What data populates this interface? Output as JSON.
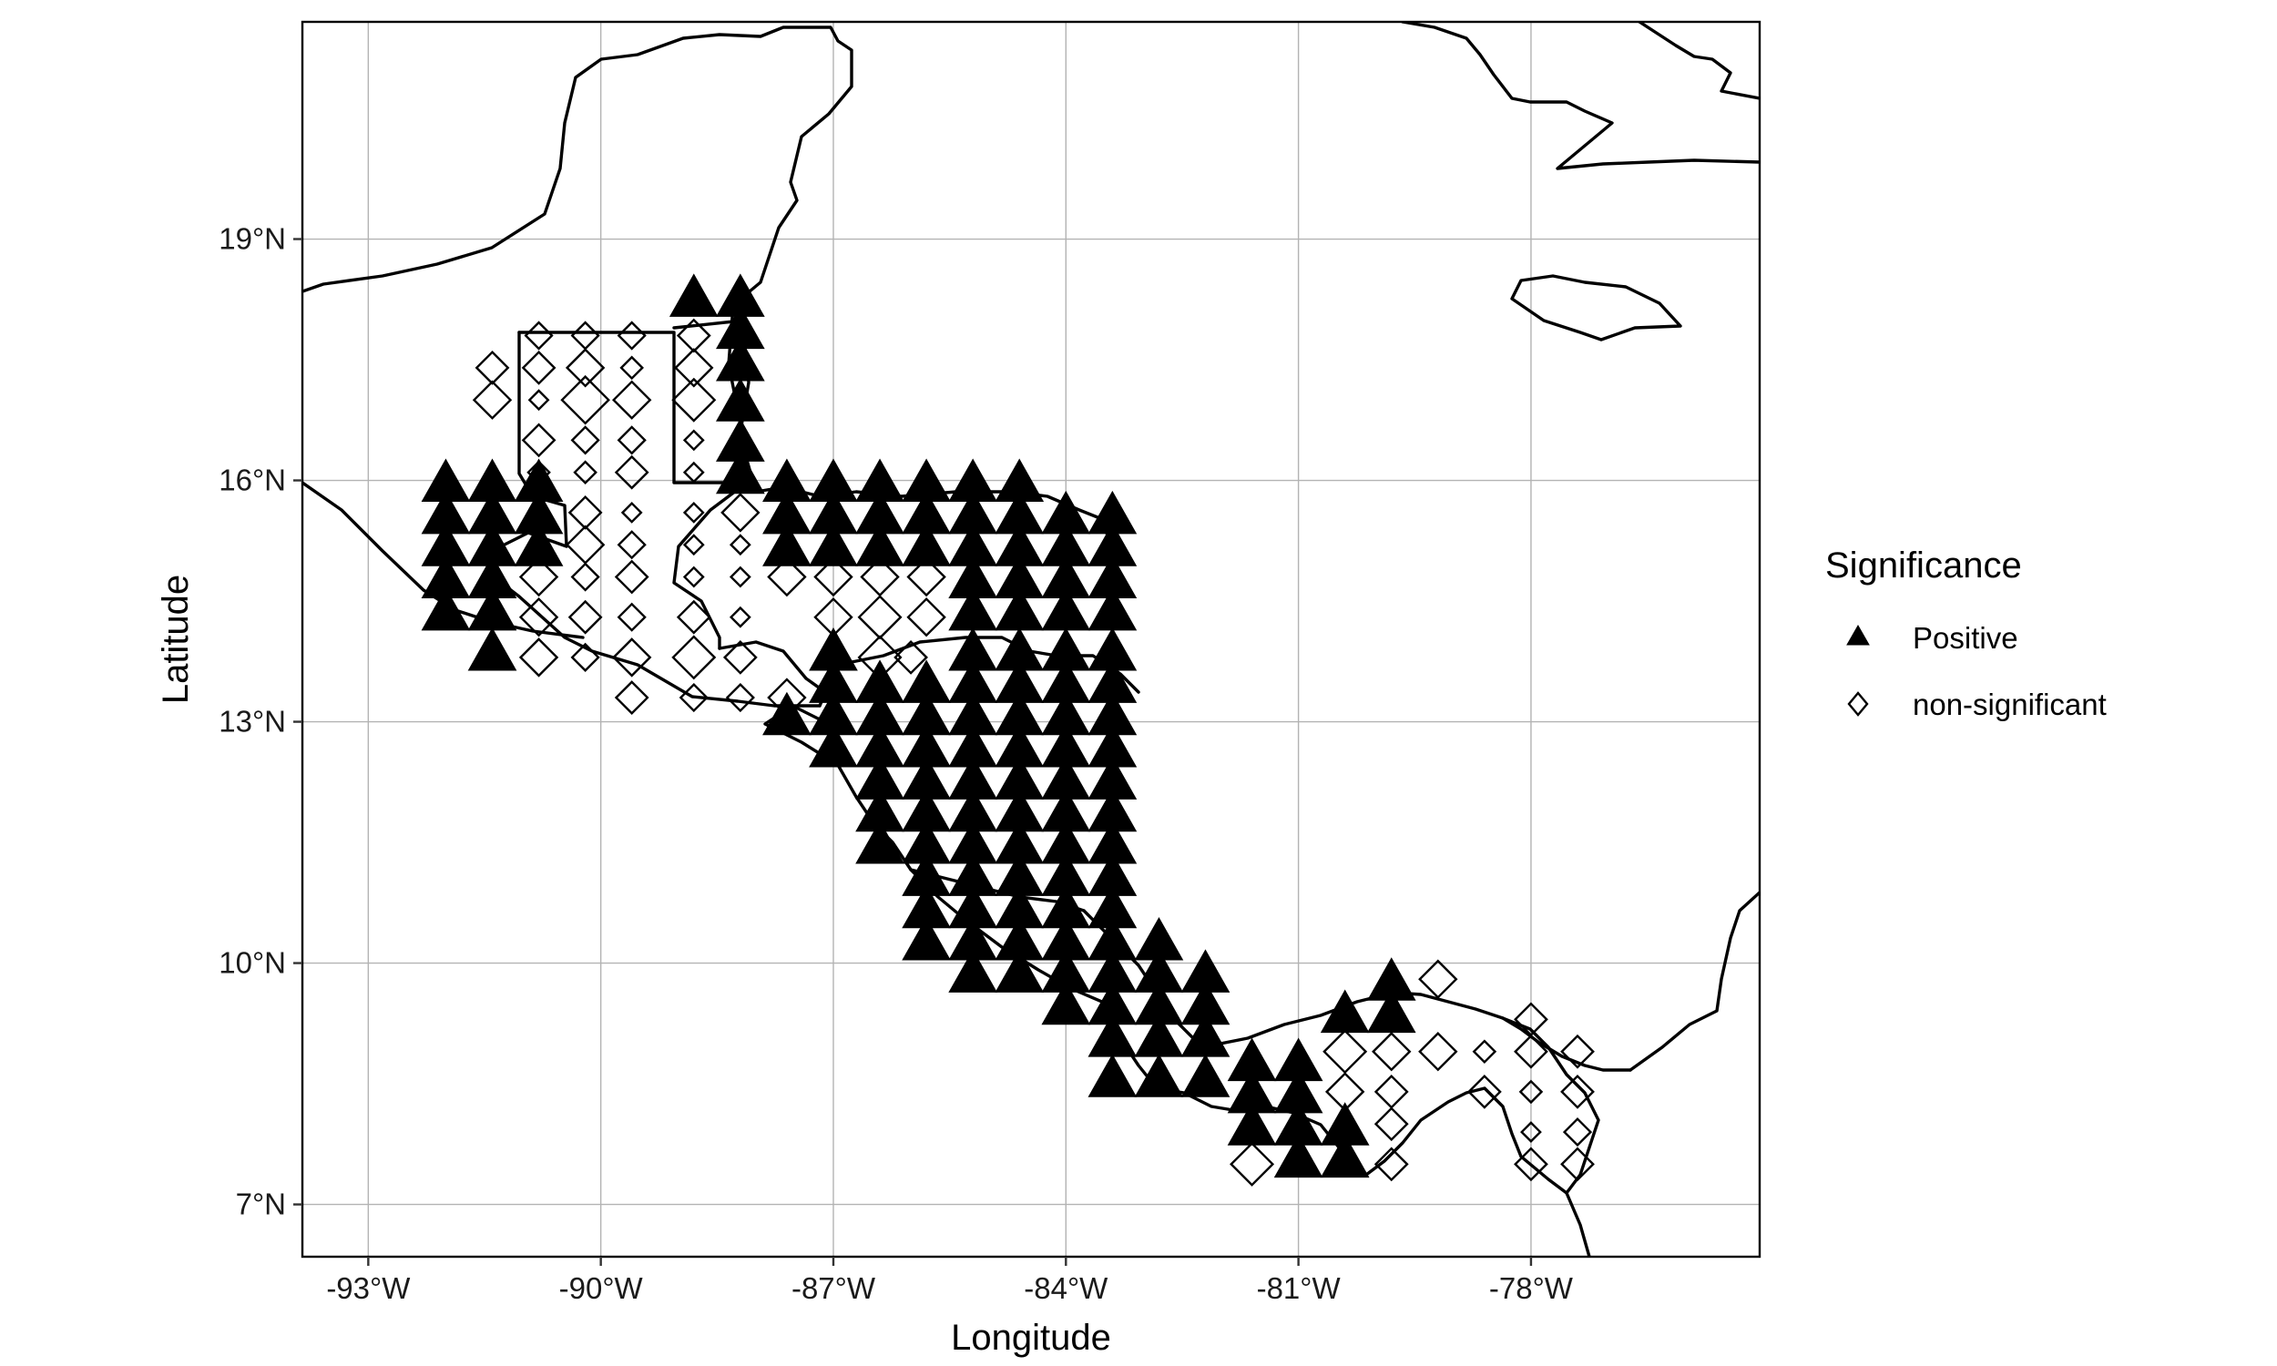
{
  "chart_data": {
    "type": "scatter",
    "xlabel": "Longitude",
    "ylabel": "Latitude",
    "xlim": [
      -93.85,
      -75.05
    ],
    "ylim": [
      6.35,
      21.7
    ],
    "x_ticks": [
      -93,
      -90,
      -87,
      -84,
      -81,
      -78
    ],
    "x_tick_labels": [
      "-93°W",
      "-90°W",
      "-87°W",
      "-84°W",
      "-81°W",
      "-78°W"
    ],
    "y_ticks": [
      7,
      10,
      13,
      16,
      19
    ],
    "y_tick_labels": [
      "7°N",
      "10°N",
      "13°N",
      "16°N",
      "19°N"
    ],
    "grid": true,
    "legend": {
      "title": "Significance",
      "position": "right",
      "entries": [
        {
          "label": "Positive",
          "marker": "triangle",
          "filled": true
        },
        {
          "label": "non-significant",
          "marker": "diamond",
          "filled": false
        }
      ]
    },
    "series": [
      {
        "name": "Positive",
        "marker": "triangle",
        "points": [
          [
            -88.8,
            18.3
          ],
          [
            -88.2,
            18.3
          ],
          [
            -88.2,
            17.9
          ],
          [
            -88.2,
            17.5
          ],
          [
            -88.2,
            17.0
          ],
          [
            -88.2,
            16.5
          ],
          [
            -88.2,
            16.1
          ],
          [
            -92.0,
            16.0
          ],
          [
            -91.4,
            16.0
          ],
          [
            -90.8,
            16.0
          ],
          [
            -92.0,
            15.6
          ],
          [
            -91.4,
            15.6
          ],
          [
            -90.8,
            15.6
          ],
          [
            -92.0,
            15.2
          ],
          [
            -91.4,
            15.2
          ],
          [
            -90.8,
            15.2
          ],
          [
            -92.0,
            14.8
          ],
          [
            -91.4,
            14.8
          ],
          [
            -92.0,
            14.4
          ],
          [
            -91.4,
            14.4
          ],
          [
            -91.4,
            13.9
          ],
          [
            -87.6,
            16.0
          ],
          [
            -87.0,
            16.0
          ],
          [
            -86.4,
            16.0
          ],
          [
            -85.8,
            16.0
          ],
          [
            -85.2,
            16.0
          ],
          [
            -84.6,
            16.0
          ],
          [
            -87.6,
            15.6
          ],
          [
            -87.0,
            15.6
          ],
          [
            -86.4,
            15.6
          ],
          [
            -85.8,
            15.6
          ],
          [
            -85.2,
            15.6
          ],
          [
            -84.6,
            15.6
          ],
          [
            -84.0,
            15.6
          ],
          [
            -83.4,
            15.6
          ],
          [
            -87.6,
            15.2
          ],
          [
            -87.0,
            15.2
          ],
          [
            -86.4,
            15.2
          ],
          [
            -85.8,
            15.2
          ],
          [
            -85.2,
            15.2
          ],
          [
            -84.6,
            15.2
          ],
          [
            -84.0,
            15.2
          ],
          [
            -83.4,
            15.2
          ],
          [
            -85.2,
            14.8
          ],
          [
            -84.6,
            14.8
          ],
          [
            -84.0,
            14.8
          ],
          [
            -83.4,
            14.8
          ],
          [
            -85.2,
            14.4
          ],
          [
            -84.6,
            14.4
          ],
          [
            -84.0,
            14.4
          ],
          [
            -83.4,
            14.4
          ],
          [
            -87.0,
            13.9
          ],
          [
            -85.2,
            13.9
          ],
          [
            -84.6,
            13.9
          ],
          [
            -84.0,
            13.9
          ],
          [
            -83.4,
            13.9
          ],
          [
            -87.0,
            13.5
          ],
          [
            -86.4,
            13.5
          ],
          [
            -85.8,
            13.5
          ],
          [
            -85.2,
            13.5
          ],
          [
            -84.6,
            13.5
          ],
          [
            -84.0,
            13.5
          ],
          [
            -83.4,
            13.5
          ],
          [
            -87.6,
            13.1
          ],
          [
            -87.0,
            13.1
          ],
          [
            -86.4,
            13.1
          ],
          [
            -85.8,
            13.1
          ],
          [
            -85.2,
            13.1
          ],
          [
            -84.6,
            13.1
          ],
          [
            -84.0,
            13.1
          ],
          [
            -83.4,
            13.1
          ],
          [
            -87.0,
            12.7
          ],
          [
            -86.4,
            12.7
          ],
          [
            -85.8,
            12.7
          ],
          [
            -85.2,
            12.7
          ],
          [
            -84.6,
            12.7
          ],
          [
            -84.0,
            12.7
          ],
          [
            -83.4,
            12.7
          ],
          [
            -86.4,
            12.3
          ],
          [
            -85.8,
            12.3
          ],
          [
            -85.2,
            12.3
          ],
          [
            -84.6,
            12.3
          ],
          [
            -84.0,
            12.3
          ],
          [
            -83.4,
            12.3
          ],
          [
            -86.4,
            11.9
          ],
          [
            -85.8,
            11.9
          ],
          [
            -85.2,
            11.9
          ],
          [
            -84.6,
            11.9
          ],
          [
            -84.0,
            11.9
          ],
          [
            -83.4,
            11.9
          ],
          [
            -86.4,
            11.5
          ],
          [
            -85.8,
            11.5
          ],
          [
            -85.2,
            11.5
          ],
          [
            -84.6,
            11.5
          ],
          [
            -84.0,
            11.5
          ],
          [
            -83.4,
            11.5
          ],
          [
            -85.8,
            11.1
          ],
          [
            -85.2,
            11.1
          ],
          [
            -84.6,
            11.1
          ],
          [
            -84.0,
            11.1
          ],
          [
            -83.4,
            11.1
          ],
          [
            -85.8,
            10.7
          ],
          [
            -85.2,
            10.7
          ],
          [
            -84.6,
            10.7
          ],
          [
            -84.0,
            10.7
          ],
          [
            -83.4,
            10.7
          ],
          [
            -85.8,
            10.3
          ],
          [
            -85.2,
            10.3
          ],
          [
            -84.6,
            10.3
          ],
          [
            -84.0,
            10.3
          ],
          [
            -83.4,
            10.3
          ],
          [
            -82.8,
            10.3
          ],
          [
            -85.2,
            9.9
          ],
          [
            -84.6,
            9.9
          ],
          [
            -84.0,
            9.9
          ],
          [
            -83.4,
            9.9
          ],
          [
            -82.8,
            9.9
          ],
          [
            -82.2,
            9.9
          ],
          [
            -84.0,
            9.5
          ],
          [
            -83.4,
            9.5
          ],
          [
            -82.8,
            9.5
          ],
          [
            -82.2,
            9.5
          ],
          [
            -80.4,
            9.4
          ],
          [
            -79.8,
            9.4
          ],
          [
            -79.8,
            9.8
          ],
          [
            -83.4,
            9.1
          ],
          [
            -82.8,
            9.1
          ],
          [
            -82.2,
            9.1
          ],
          [
            -81.6,
            8.8
          ],
          [
            -81.0,
            8.8
          ],
          [
            -83.4,
            8.6
          ],
          [
            -82.8,
            8.6
          ],
          [
            -82.2,
            8.6
          ],
          [
            -81.6,
            8.4
          ],
          [
            -81.0,
            8.4
          ],
          [
            -81.6,
            8.0
          ],
          [
            -81.0,
            8.0
          ],
          [
            -80.4,
            8.0
          ],
          [
            -81.0,
            7.6
          ],
          [
            -80.4,
            7.6
          ]
        ]
      },
      {
        "name": "non-significant",
        "marker": "diamond",
        "points": [
          [
            -91.4,
            17.4,
            0.8
          ],
          [
            -90.8,
            17.8,
            0.6
          ],
          [
            -90.2,
            17.8,
            0.6
          ],
          [
            -89.6,
            17.8,
            0.6
          ],
          [
            -88.8,
            17.8,
            0.8
          ],
          [
            -91.4,
            17.0,
            1.0
          ],
          [
            -90.8,
            17.4,
            0.8
          ],
          [
            -90.2,
            17.4,
            1.0
          ],
          [
            -89.6,
            17.4,
            0.4
          ],
          [
            -88.8,
            17.4,
            1.0
          ],
          [
            -90.8,
            17.0,
            0.3
          ],
          [
            -90.2,
            17.0,
            1.4
          ],
          [
            -89.6,
            17.0,
            1.0
          ],
          [
            -88.8,
            17.0,
            1.2
          ],
          [
            -90.8,
            16.5,
            0.8
          ],
          [
            -90.2,
            16.5,
            0.6
          ],
          [
            -89.6,
            16.5,
            0.6
          ],
          [
            -88.8,
            16.5,
            0.3
          ],
          [
            -90.8,
            16.1,
            0.4
          ],
          [
            -90.2,
            16.1,
            0.4
          ],
          [
            -89.6,
            16.1,
            0.8
          ],
          [
            -88.8,
            16.1,
            0.3
          ],
          [
            -90.2,
            15.6,
            0.8
          ],
          [
            -89.6,
            15.6,
            0.3
          ],
          [
            -88.8,
            15.6,
            0.3
          ],
          [
            -88.2,
            15.6,
            1.0
          ],
          [
            -90.2,
            15.2,
            1.0
          ],
          [
            -89.6,
            15.2,
            0.6
          ],
          [
            -88.8,
            15.2,
            0.3
          ],
          [
            -88.2,
            15.2,
            0.3
          ],
          [
            -90.8,
            14.8,
            1.0
          ],
          [
            -90.2,
            14.8,
            0.6
          ],
          [
            -89.6,
            14.8,
            0.8
          ],
          [
            -88.8,
            14.8,
            0.3
          ],
          [
            -88.2,
            14.8,
            0.3
          ],
          [
            -87.6,
            14.8,
            1.0
          ],
          [
            -87.0,
            14.8,
            1.0
          ],
          [
            -86.4,
            14.8,
            1.0
          ],
          [
            -85.8,
            14.8,
            1.0
          ],
          [
            -90.8,
            14.3,
            1.0
          ],
          [
            -90.2,
            14.3,
            0.8
          ],
          [
            -89.6,
            14.3,
            0.6
          ],
          [
            -88.8,
            14.3,
            0.8
          ],
          [
            -88.2,
            14.3,
            0.3
          ],
          [
            -87.0,
            14.3,
            1.0
          ],
          [
            -86.4,
            14.3,
            1.2
          ],
          [
            -85.8,
            14.3,
            1.0
          ],
          [
            -90.8,
            13.8,
            1.0
          ],
          [
            -90.2,
            13.8,
            0.6
          ],
          [
            -89.6,
            13.8,
            1.0
          ],
          [
            -88.8,
            13.8,
            1.2
          ],
          [
            -88.2,
            13.8,
            0.8
          ],
          [
            -86.4,
            13.8,
            1.2
          ],
          [
            -86.0,
            13.8,
            0.8
          ],
          [
            -89.6,
            13.3,
            0.8
          ],
          [
            -88.8,
            13.3,
            0.6
          ],
          [
            -88.2,
            13.3,
            0.6
          ],
          [
            -87.6,
            13.3,
            1.0
          ],
          [
            -79.2,
            9.8,
            1.0
          ],
          [
            -80.4,
            8.9,
            1.2
          ],
          [
            -79.8,
            8.9,
            1.0
          ],
          [
            -79.2,
            8.9,
            1.0
          ],
          [
            -78.6,
            8.9,
            0.4
          ],
          [
            -78.0,
            9.3,
            0.8
          ],
          [
            -80.4,
            8.4,
            1.0
          ],
          [
            -79.8,
            8.4,
            0.8
          ],
          [
            -78.6,
            8.4,
            0.8
          ],
          [
            -78.0,
            8.9,
            0.8
          ],
          [
            -77.4,
            8.9,
            0.8
          ],
          [
            -79.8,
            8.0,
            0.8
          ],
          [
            -78.0,
            8.4,
            0.4
          ],
          [
            -77.4,
            8.4,
            0.8
          ],
          [
            -81.6,
            7.5,
            1.2
          ],
          [
            -79.8,
            7.5,
            0.8
          ],
          [
            -78.0,
            7.9,
            0.3
          ],
          [
            -77.4,
            7.9,
            0.6
          ],
          [
            -78.0,
            7.5,
            0.8
          ],
          [
            -77.4,
            7.5,
            0.8
          ]
        ]
      }
    ]
  }
}
